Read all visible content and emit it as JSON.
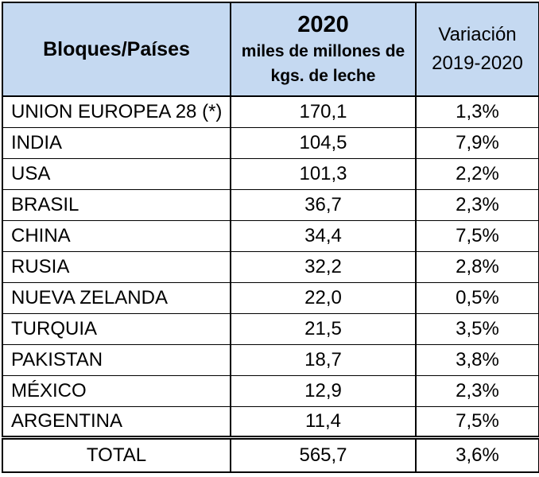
{
  "header": {
    "country_label": "Bloques/Países",
    "year": "2020",
    "unit_line1": "miles de millones de",
    "unit_line2": "kgs. de leche",
    "variation_line1": "Variación",
    "variation_line2": "2019-2020"
  },
  "header_color": "#c5d9f1",
  "rows": [
    {
      "country": "UNION EUROPEA 28 (*)",
      "value": "170,1",
      "variation": "1,3%"
    },
    {
      "country": "INDIA",
      "value": "104,5",
      "variation": "7,9%"
    },
    {
      "country": "USA",
      "value": "101,3",
      "variation": "2,2%"
    },
    {
      "country": "BRASIL",
      "value": "36,7",
      "variation": "2,3%"
    },
    {
      "country": "CHINA",
      "value": "34,4",
      "variation": "7,5%"
    },
    {
      "country": "RUSIA",
      "value": "32,2",
      "variation": "2,8%"
    },
    {
      "country": "NUEVA ZELANDA",
      "value": "22,0",
      "variation": "0,5%"
    },
    {
      "country": "TURQUIA",
      "value": "21,5",
      "variation": "3,5%"
    },
    {
      "country": "PAKISTAN",
      "value": "18,7",
      "variation": "3,8%"
    },
    {
      "country": "MÉXICO",
      "value": "12,9",
      "variation": "2,3%"
    },
    {
      "country": "ARGENTINA",
      "value": "11,4",
      "variation": "7,5%"
    }
  ],
  "total": {
    "label": "TOTAL",
    "value": "565,7",
    "variation": "3,6%"
  }
}
